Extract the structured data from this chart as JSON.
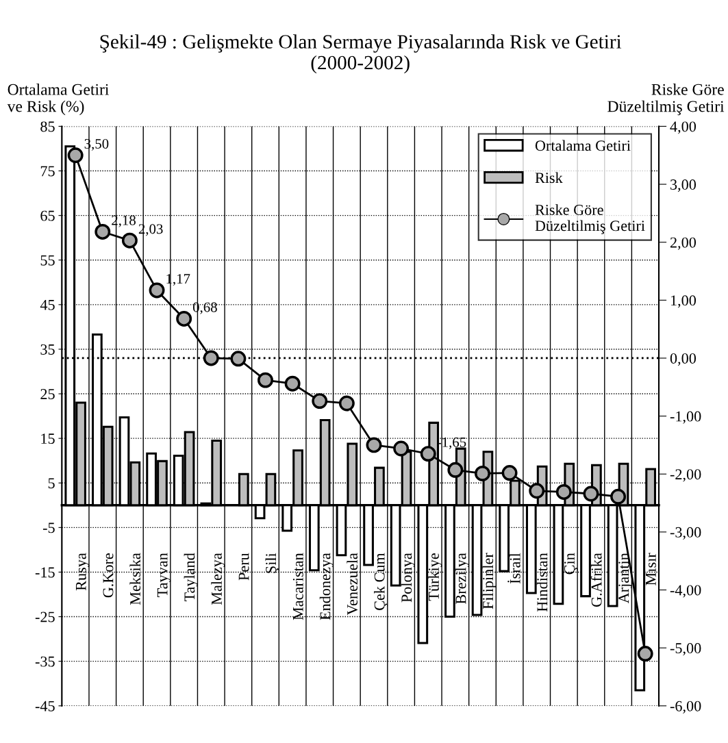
{
  "chart_data": {
    "type": "bar",
    "title": "Şekil-49 : Gelişmekte Olan Sermaye Piyasalarında Risk ve Getiri\n(2000-2002)",
    "ylabel": "Ortalama Getiri\nve Risk (%)",
    "y2label": "Riske Göre\nDüzeltilmiş Getiri",
    "categories": [
      "Rusya",
      "G.Kore",
      "Meksika",
      "Tayvan",
      "Tayland",
      "Malezya",
      "Peru",
      "Şili",
      "Macaristan",
      "Endonezya",
      "Venezuela",
      "Çek Cum",
      "Polonya",
      "Türkiye",
      "Brezilya",
      "Filipinler",
      "İsrail",
      "Hindistan",
      "Çin",
      "G.Afrika",
      "Arjantin",
      "Mısır"
    ],
    "series": [
      {
        "name": "Ortalama Getiri",
        "color": "#ffffff",
        "values": [
          80.5,
          38.3,
          19.7,
          11.6,
          11.1,
          0.4,
          null,
          -2.9,
          -5.7,
          -14.6,
          -11.2,
          -13.4,
          -18.0,
          -30.9,
          -25.0,
          -24.6,
          -14.8,
          -19.7,
          -22.1,
          -20.4,
          -22.6,
          -41.5
        ]
      },
      {
        "name": "Risk",
        "color": "#bdbdbd",
        "values": [
          23.0,
          17.6,
          9.6,
          9.9,
          16.4,
          14.5,
          7.0,
          7.0,
          12.3,
          19.1,
          13.8,
          8.4,
          12.0,
          18.5,
          12.7,
          12.0,
          5.5,
          8.7,
          9.3,
          9.0,
          9.3,
          8.1
        ]
      },
      {
        "name": "Riske Göre\nDüzeltilmiş Getiri",
        "type": "line",
        "axis": "y2",
        "color": "#000000",
        "values": [
          3.5,
          2.18,
          2.03,
          1.17,
          0.68,
          0.0,
          -0.01,
          -0.38,
          -0.44,
          -0.74,
          -0.78,
          -1.5,
          -1.56,
          -1.65,
          -1.93,
          -1.99,
          -1.98,
          -2.29,
          -2.31,
          -2.34,
          -2.39,
          -5.1
        ],
        "value_labels": [
          "3,50",
          "2,18",
          "2,03",
          "1,17",
          "0,68",
          null,
          null,
          null,
          null,
          null,
          null,
          null,
          null,
          "-1,65",
          null,
          null,
          null,
          null,
          null,
          null,
          null,
          null
        ]
      }
    ],
    "ylim": [
      -45,
      85
    ],
    "yticks": [
      -45,
      -35,
      -25,
      -15,
      -5,
      5,
      15,
      25,
      35,
      45,
      55,
      65,
      75,
      85
    ],
    "y2lim": [
      -6,
      4
    ],
    "y2ticks": [
      {
        "value": -6,
        "label": "-6,00"
      },
      {
        "value": -5,
        "label": "-5,00"
      },
      {
        "value": -4,
        "label": "-4,00"
      },
      {
        "value": -3,
        "label": "-3,00"
      },
      {
        "value": -2,
        "label": "-2,00"
      },
      {
        "value": -1,
        "label": "-1,00"
      },
      {
        "value": 0,
        "label": "0,00"
      },
      {
        "value": 1,
        "label": "1,00"
      },
      {
        "value": 2,
        "label": "2,00"
      },
      {
        "value": 3,
        "label": "3,00"
      },
      {
        "value": 4,
        "label": "4,00"
      }
    ],
    "ref_lines": [
      {
        "axis": "y2",
        "value": 0,
        "line_style": "dotted",
        "color": "#000000"
      }
    ],
    "grid": true,
    "legend": "top right",
    "marker": "circle",
    "line_style": "solid"
  }
}
